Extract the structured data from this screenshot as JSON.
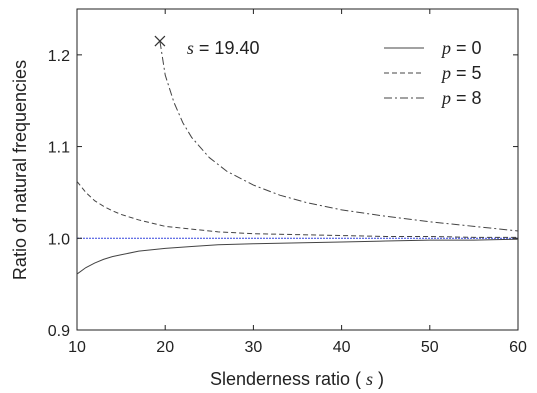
{
  "chart_data": {
    "type": "line",
    "xlabel": "Slenderness ratio (",
    "xlabel_var": "s",
    "xlabel_close": ")",
    "ylabel": "Ratio of natural frequencies",
    "xlim": [
      10,
      60
    ],
    "ylim": [
      0.9,
      1.25
    ],
    "xticks": [
      10,
      20,
      30,
      40,
      50,
      60
    ],
    "yticks": [
      0.9,
      1.0,
      1.1,
      1.2
    ],
    "grid": false,
    "legend_position": "top-right",
    "reference_line": {
      "y": 1.0,
      "color": "#3344dd",
      "style": "dotted"
    },
    "annotation": {
      "var": "s",
      "text": " = 19.40",
      "marker": "x",
      "x": 19.4,
      "y": 1.215
    },
    "series": [
      {
        "name_var": "p",
        "name_value": " = 0",
        "style": "solid",
        "color": "#444444",
        "x": [
          10,
          11,
          12,
          13,
          14,
          15,
          17,
          20,
          23,
          26,
          30,
          35,
          40,
          45,
          50,
          55,
          60
        ],
        "y": [
          0.961,
          0.968,
          0.973,
          0.977,
          0.98,
          0.982,
          0.986,
          0.989,
          0.991,
          0.993,
          0.994,
          0.995,
          0.996,
          0.997,
          0.998,
          0.998,
          0.999
        ]
      },
      {
        "name_var": "p",
        "name_value": " = 5",
        "style": "dashed",
        "color": "#444444",
        "x": [
          10,
          11,
          12,
          13,
          14,
          15,
          17,
          20,
          23,
          26,
          30,
          35,
          40,
          45,
          50,
          55,
          60
        ],
        "y": [
          1.062,
          1.05,
          1.041,
          1.035,
          1.03,
          1.026,
          1.02,
          1.013,
          1.01,
          1.007,
          1.005,
          1.004,
          1.003,
          1.002,
          1.002,
          1.001,
          1.001
        ]
      },
      {
        "name_var": "p",
        "name_value": " = 8",
        "style": "dashdot",
        "color": "#444444",
        "x": [
          19.4,
          20,
          21,
          22,
          23,
          25,
          27,
          30,
          33,
          36,
          40,
          45,
          50,
          55,
          60
        ],
        "y": [
          1.215,
          1.178,
          1.148,
          1.126,
          1.11,
          1.088,
          1.073,
          1.058,
          1.047,
          1.039,
          1.031,
          1.024,
          1.018,
          1.013,
          1.008
        ]
      }
    ]
  }
}
